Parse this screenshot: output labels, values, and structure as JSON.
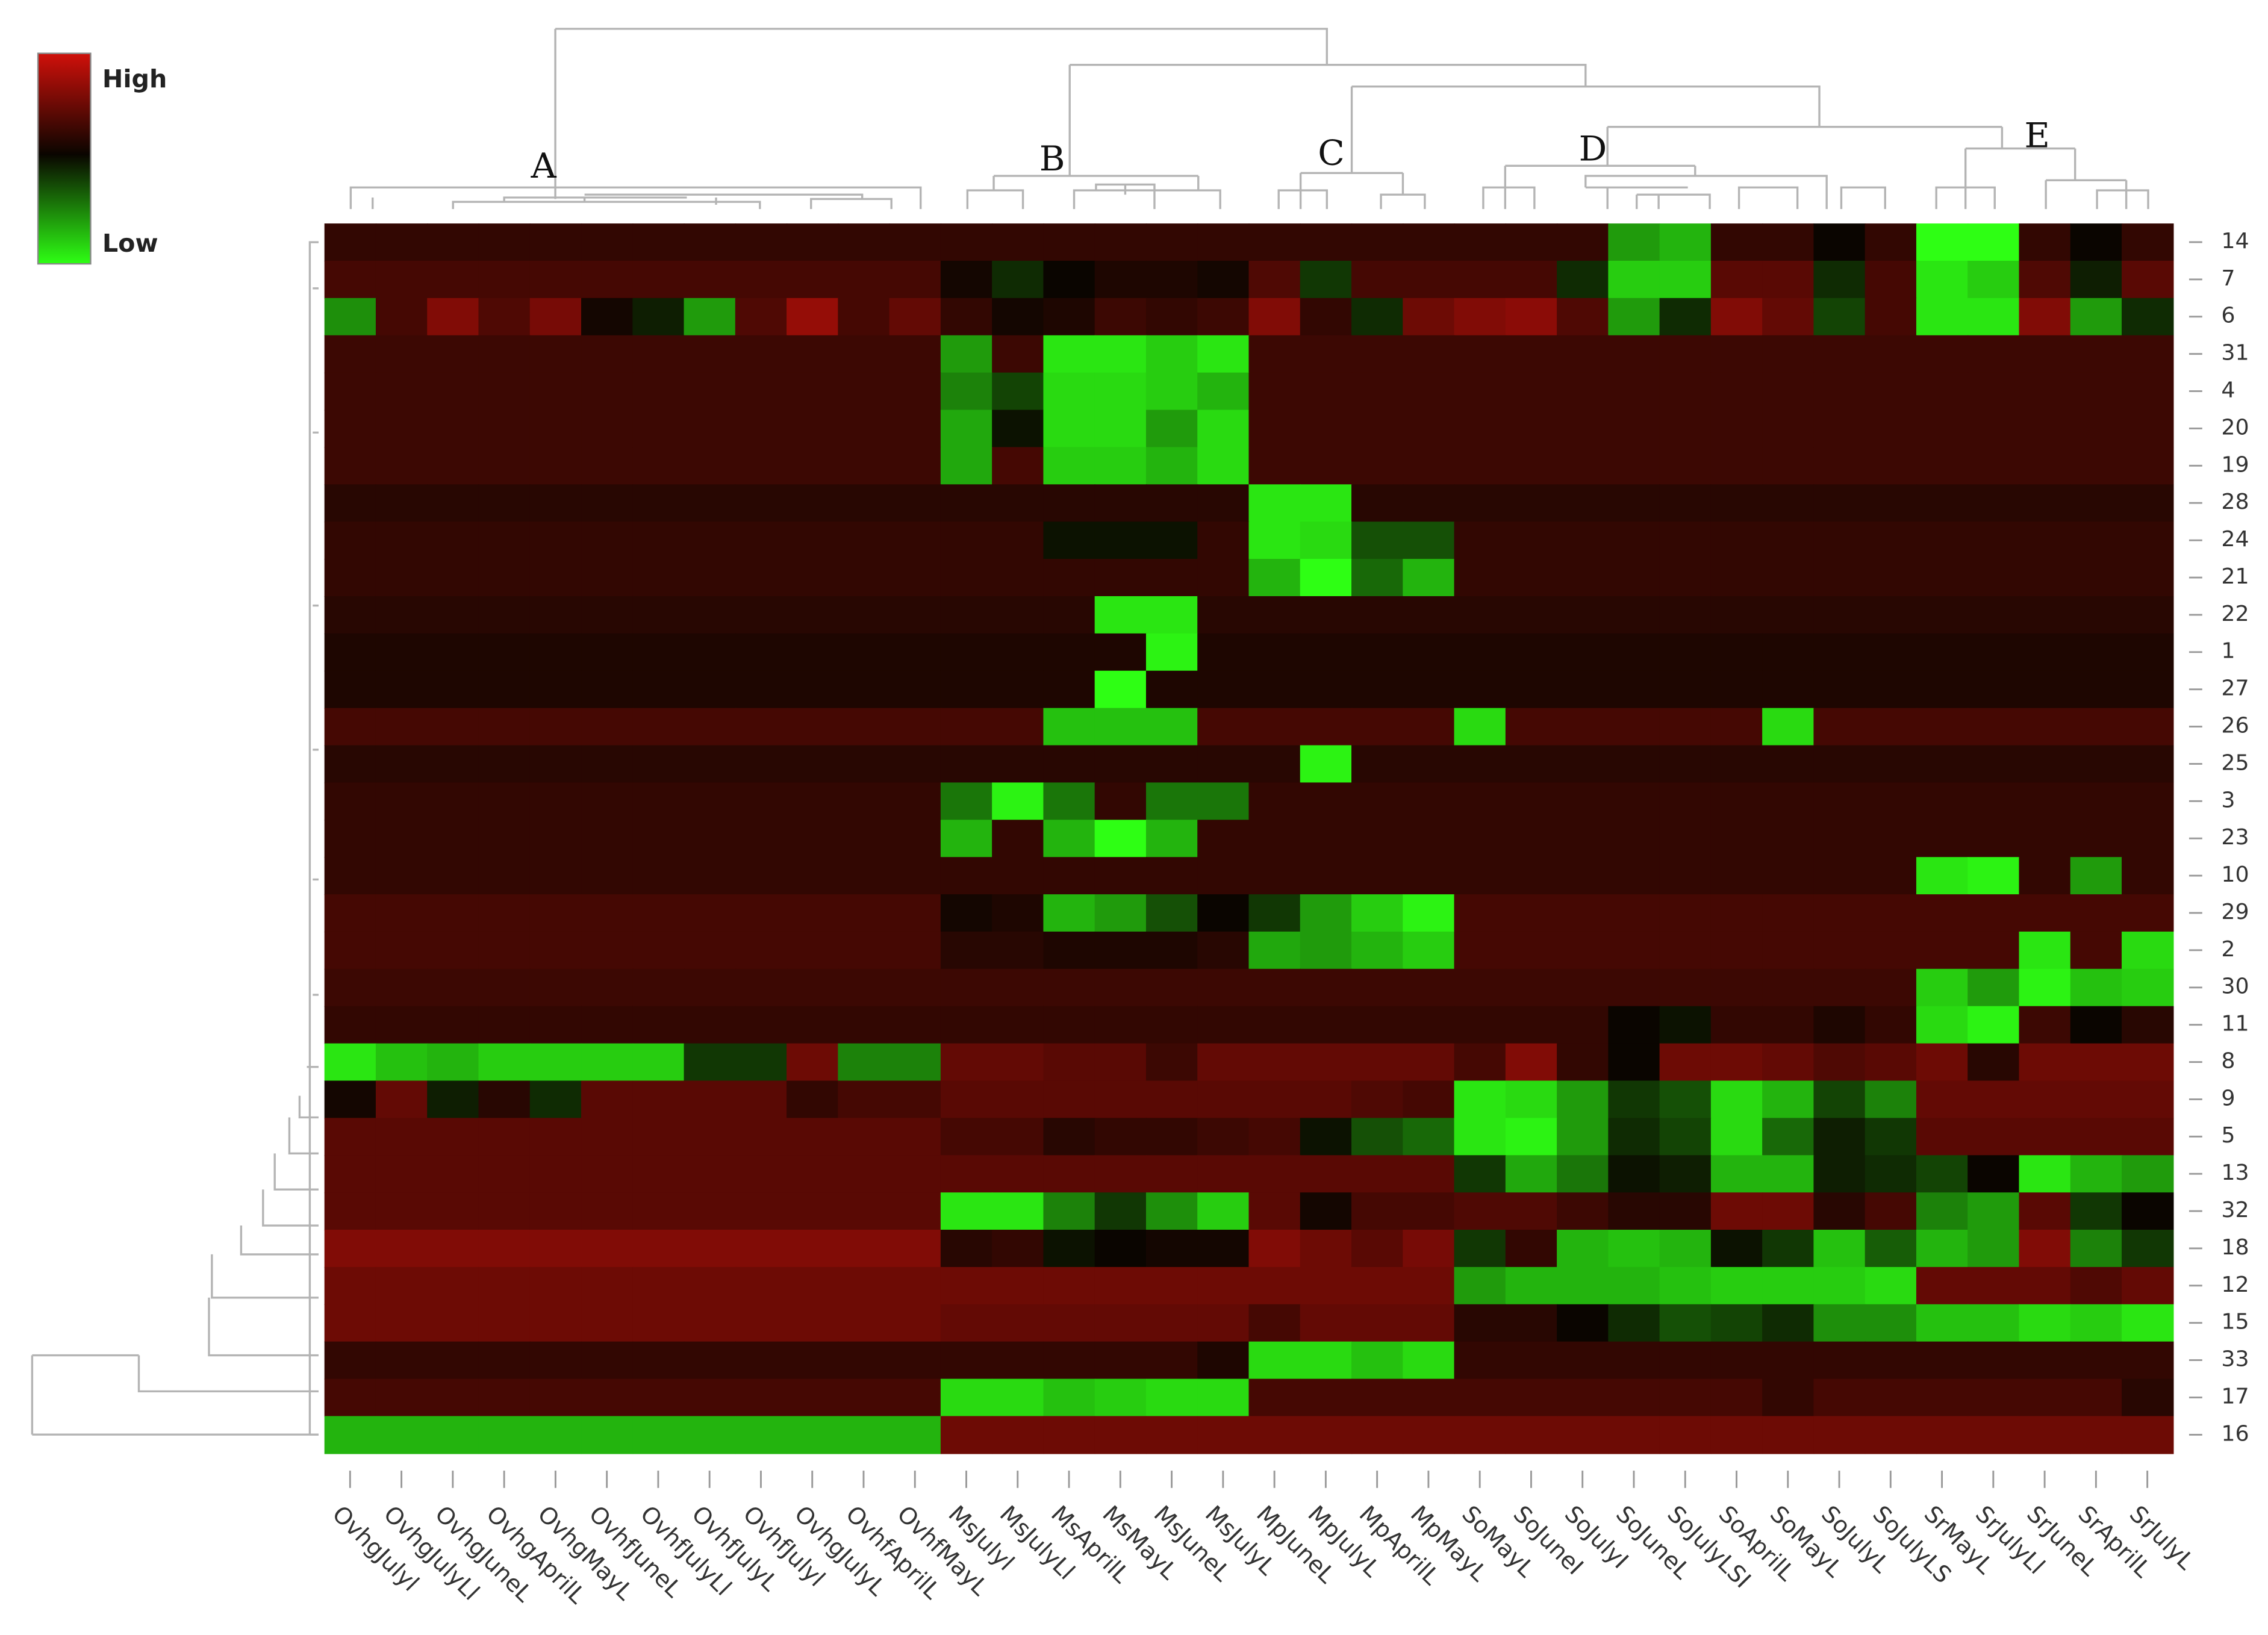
{
  "chart_data": {
    "type": "heatmap",
    "x": [
      "OvhgJulyl",
      "OvhgJulyLl",
      "OvhgJuneL",
      "OvhgAprilL",
      "OvhgMayL",
      "OvhfJuneL",
      "OvhfJulyLl",
      "OvhfJulyL",
      "OvhfJulyl",
      "OvhgJulyL",
      "OvhfAprilL",
      "OvhfMayL",
      "MsJulyl",
      "MsJulyLl",
      "MsAprilL",
      "MsMayL",
      "MsJuneL",
      "MsJulyL",
      "MpJuneL",
      "MpJulyL",
      "MpAprilL",
      "MpMayL",
      "SoMayL",
      "SoJuneI",
      "SoJulyI",
      "SoJuneL",
      "SoJulyLSI",
      "SoAprilL",
      "SoMayL",
      "SoJulyL",
      "SoJulyLS",
      "SrMayL",
      "SrJulyLl",
      "SrJuneL",
      "SrAprilL",
      "SrJulyL"
    ],
    "y": [
      "14",
      "7",
      "6",
      "31",
      "4",
      "20",
      "19",
      "28",
      "24",
      "21",
      "22",
      "1",
      "27",
      "26",
      "25",
      "3",
      "23",
      "10",
      "29",
      "2",
      "30",
      "11",
      "8",
      "9",
      "5",
      "13",
      "32",
      "18",
      "12",
      "15",
      "33",
      "17",
      "16"
    ],
    "cluster_labels": [
      "A",
      "B",
      "C",
      "D",
      "E"
    ],
    "colorbar_labels": [
      "High",
      "Low"
    ],
    "zlim": [
      -1,
      1
    ],
    "colors": {
      "low": "#2eff14",
      "mid": "#0a0500",
      "high": "#d0100a"
    },
    "values": [
      [
        0.2,
        0.2,
        0.2,
        0.2,
        0.2,
        0.2,
        0.2,
        0.2,
        0.2,
        0.2,
        0.2,
        0.2,
        0.2,
        0.2,
        0.2,
        0.2,
        0.2,
        0.2,
        0.2,
        0.2,
        0.2,
        0.2,
        0.2,
        0.2,
        0.2,
        -0.6,
        -0.7,
        0.2,
        0.2,
        0,
        0.2,
        -1,
        -1,
        0.2,
        0,
        0.2
      ],
      [
        0.3,
        0.3,
        0.3,
        0.3,
        0.3,
        0.3,
        0.3,
        0.3,
        0.3,
        0.3,
        0.3,
        0.3,
        0.05,
        -0.15,
        0,
        0.1,
        0.1,
        0.05,
        0.35,
        -0.2,
        0.3,
        0.3,
        0.3,
        0.3,
        -0.15,
        -0.8,
        -0.8,
        0.4,
        0.4,
        -0.15,
        0.3,
        -0.9,
        -0.8,
        0.35,
        -0.1,
        0.4
      ],
      [
        -0.55,
        0.3,
        0.6,
        0.35,
        0.55,
        0.05,
        -0.1,
        -0.6,
        0.35,
        0.7,
        0.3,
        0.45,
        0.2,
        0.05,
        0.1,
        0.25,
        0.2,
        0.25,
        0.6,
        0.2,
        -0.15,
        0.5,
        0.6,
        0.65,
        0.35,
        -0.6,
        -0.15,
        0.6,
        0.45,
        -0.25,
        0.3,
        -0.9,
        -0.9,
        0.6,
        -0.6,
        -0.15
      ],
      [
        0.25,
        0.25,
        0.25,
        0.25,
        0.25,
        0.25,
        0.25,
        0.25,
        0.25,
        0.25,
        0.25,
        0.25,
        -0.6,
        0.25,
        -0.9,
        -0.9,
        -0.8,
        -0.9,
        0.25,
        0.25,
        0.25,
        0.25,
        0.25,
        0.25,
        0.25,
        0.25,
        0.25,
        0.25,
        0.25,
        0.25,
        0.25,
        0.25,
        0.25,
        0.25,
        0.25,
        0.25
      ],
      [
        0.25,
        0.25,
        0.25,
        0.25,
        0.25,
        0.25,
        0.25,
        0.25,
        0.25,
        0.25,
        0.25,
        0.25,
        -0.5,
        -0.25,
        -0.85,
        -0.85,
        -0.8,
        -0.7,
        0.25,
        0.25,
        0.25,
        0.25,
        0.25,
        0.25,
        0.25,
        0.25,
        0.25,
        0.25,
        0.25,
        0.25,
        0.25,
        0.25,
        0.25,
        0.25,
        0.25,
        0.25
      ],
      [
        0.25,
        0.25,
        0.25,
        0.25,
        0.25,
        0.25,
        0.25,
        0.25,
        0.25,
        0.25,
        0.25,
        0.25,
        -0.65,
        -0.05,
        -0.85,
        -0.85,
        -0.6,
        -0.85,
        0.25,
        0.25,
        0.25,
        0.25,
        0.25,
        0.25,
        0.25,
        0.25,
        0.25,
        0.25,
        0.25,
        0.25,
        0.25,
        0.25,
        0.25,
        0.25,
        0.25,
        0.25
      ],
      [
        0.25,
        0.25,
        0.25,
        0.25,
        0.25,
        0.25,
        0.25,
        0.25,
        0.25,
        0.25,
        0.25,
        0.25,
        -0.65,
        0.3,
        -0.8,
        -0.8,
        -0.7,
        -0.85,
        0.25,
        0.25,
        0.25,
        0.25,
        0.25,
        0.25,
        0.25,
        0.25,
        0.25,
        0.25,
        0.25,
        0.25,
        0.25,
        0.25,
        0.25,
        0.25,
        0.25,
        0.25
      ],
      [
        0.15,
        0.15,
        0.15,
        0.15,
        0.15,
        0.15,
        0.15,
        0.15,
        0.15,
        0.15,
        0.15,
        0.15,
        0.15,
        0.15,
        0.15,
        0.15,
        0.15,
        0.15,
        -0.9,
        -0.9,
        0.15,
        0.15,
        0.15,
        0.15,
        0.15,
        0.15,
        0.15,
        0.15,
        0.15,
        0.15,
        0.15,
        0.15,
        0.15,
        0.15,
        0.15,
        0.15
      ],
      [
        0.2,
        0.2,
        0.2,
        0.2,
        0.2,
        0.2,
        0.2,
        0.2,
        0.2,
        0.2,
        0.2,
        0.2,
        0.2,
        0.2,
        -0.05,
        -0.05,
        -0.05,
        0.2,
        -0.9,
        -0.85,
        -0.3,
        -0.3,
        0.2,
        0.2,
        0.2,
        0.2,
        0.2,
        0.2,
        0.2,
        0.2,
        0.2,
        0.2,
        0.2,
        0.2,
        0.2,
        0.2
      ],
      [
        0.2,
        0.2,
        0.2,
        0.2,
        0.2,
        0.2,
        0.2,
        0.2,
        0.2,
        0.2,
        0.2,
        0.2,
        0.2,
        0.2,
        0.2,
        0.2,
        0.2,
        0.2,
        -0.7,
        -1,
        -0.4,
        -0.7,
        0.2,
        0.2,
        0.2,
        0.2,
        0.2,
        0.2,
        0.2,
        0.2,
        0.2,
        0.2,
        0.2,
        0.2,
        0.2,
        0.2
      ],
      [
        0.15,
        0.15,
        0.15,
        0.15,
        0.15,
        0.15,
        0.15,
        0.15,
        0.15,
        0.15,
        0.15,
        0.15,
        0.15,
        0.15,
        0.15,
        -0.9,
        -0.9,
        0.15,
        0.15,
        0.15,
        0.15,
        0.15,
        0.15,
        0.15,
        0.15,
        0.15,
        0.15,
        0.15,
        0.15,
        0.15,
        0.15,
        0.15,
        0.15,
        0.15,
        0.15,
        0.15
      ],
      [
        0.1,
        0.1,
        0.1,
        0.1,
        0.1,
        0.1,
        0.1,
        0.1,
        0.1,
        0.1,
        0.1,
        0.1,
        0.1,
        0.1,
        0.1,
        0.1,
        -0.95,
        0.1,
        0.1,
        0.1,
        0.1,
        0.1,
        0.1,
        0.1,
        0.1,
        0.1,
        0.1,
        0.1,
        0.1,
        0.1,
        0.1,
        0.1,
        0.1,
        0.1,
        0.1,
        0.1
      ],
      [
        0.1,
        0.1,
        0.1,
        0.1,
        0.1,
        0.1,
        0.1,
        0.1,
        0.1,
        0.1,
        0.1,
        0.1,
        0.1,
        0.1,
        0.1,
        -1,
        0.1,
        0.1,
        0.1,
        0.1,
        0.1,
        0.1,
        0.1,
        0.1,
        0.1,
        0.1,
        0.1,
        0.1,
        0.1,
        0.1,
        0.1,
        0.1,
        0.1,
        0.1,
        0.1,
        0.1
      ],
      [
        0.3,
        0.3,
        0.3,
        0.3,
        0.3,
        0.3,
        0.3,
        0.3,
        0.3,
        0.3,
        0.3,
        0.3,
        0.3,
        0.3,
        -0.75,
        -0.75,
        -0.75,
        0.3,
        0.3,
        0.3,
        0.3,
        0.3,
        -0.85,
        0.3,
        0.3,
        0.3,
        0.3,
        0.3,
        -0.85,
        0.3,
        0.3,
        0.3,
        0.3,
        0.3,
        0.3,
        0.3
      ],
      [
        0.15,
        0.15,
        0.15,
        0.15,
        0.15,
        0.15,
        0.15,
        0.15,
        0.15,
        0.15,
        0.15,
        0.15,
        0.15,
        0.15,
        0.15,
        0.15,
        0.15,
        0.15,
        0.15,
        -0.95,
        0.15,
        0.15,
        0.15,
        0.15,
        0.15,
        0.15,
        0.15,
        0.15,
        0.15,
        0.15,
        0.15,
        0.15,
        0.15,
        0.15,
        0.15,
        0.15
      ],
      [
        0.2,
        0.2,
        0.2,
        0.2,
        0.2,
        0.2,
        0.2,
        0.2,
        0.2,
        0.2,
        0.2,
        0.2,
        -0.45,
        -0.95,
        -0.45,
        0.2,
        -0.45,
        -0.45,
        0.2,
        0.2,
        0.2,
        0.2,
        0.2,
        0.2,
        0.2,
        0.2,
        0.2,
        0.2,
        0.2,
        0.2,
        0.2,
        0.2,
        0.2,
        0.2,
        0.2,
        0.2
      ],
      [
        0.2,
        0.2,
        0.2,
        0.2,
        0.2,
        0.2,
        0.2,
        0.2,
        0.2,
        0.2,
        0.2,
        0.2,
        -0.7,
        0.2,
        -0.7,
        -1,
        -0.7,
        0.2,
        0.2,
        0.2,
        0.2,
        0.2,
        0.2,
        0.2,
        0.2,
        0.2,
        0.2,
        0.2,
        0.2,
        0.2,
        0.2,
        0.2,
        0.2,
        0.2,
        0.2,
        0.2
      ],
      [
        0.2,
        0.2,
        0.2,
        0.2,
        0.2,
        0.2,
        0.2,
        0.2,
        0.2,
        0.2,
        0.2,
        0.2,
        0.2,
        0.2,
        0.2,
        0.2,
        0.2,
        0.2,
        0.2,
        0.2,
        0.2,
        0.2,
        0.2,
        0.2,
        0.2,
        0.2,
        0.2,
        0.2,
        0.2,
        0.2,
        0.2,
        -0.9,
        -0.95,
        0.2,
        -0.6,
        0.2
      ],
      [
        0.3,
        0.3,
        0.3,
        0.3,
        0.3,
        0.3,
        0.3,
        0.3,
        0.3,
        0.3,
        0.3,
        0.3,
        0.05,
        0.1,
        -0.7,
        -0.6,
        -0.3,
        0,
        -0.2,
        -0.6,
        -0.8,
        -0.95,
        0.3,
        0.3,
        0.3,
        0.3,
        0.3,
        0.3,
        0.3,
        0.3,
        0.3,
        0.3,
        0.3,
        0.3,
        0.3,
        0.3
      ],
      [
        0.3,
        0.3,
        0.3,
        0.3,
        0.3,
        0.3,
        0.3,
        0.3,
        0.3,
        0.3,
        0.3,
        0.3,
        0.15,
        0.15,
        0.1,
        0.1,
        0.1,
        0.15,
        -0.65,
        -0.6,
        -0.7,
        -0.8,
        0.3,
        0.3,
        0.3,
        0.3,
        0.3,
        0.3,
        0.3,
        0.3,
        0.3,
        0.3,
        0.3,
        -0.9,
        0.3,
        -0.85
      ],
      [
        0.25,
        0.25,
        0.25,
        0.25,
        0.25,
        0.25,
        0.25,
        0.25,
        0.25,
        0.25,
        0.25,
        0.25,
        0.25,
        0.25,
        0.25,
        0.25,
        0.25,
        0.25,
        0.25,
        0.25,
        0.25,
        0.25,
        0.25,
        0.25,
        0.25,
        0.25,
        0.25,
        0.25,
        0.25,
        0.25,
        0.25,
        -0.8,
        -0.6,
        -0.95,
        -0.75,
        -0.8
      ],
      [
        0.2,
        0.2,
        0.2,
        0.2,
        0.2,
        0.2,
        0.2,
        0.2,
        0.2,
        0.2,
        0.2,
        0.2,
        0.2,
        0.2,
        0.2,
        0.2,
        0.2,
        0.2,
        0.2,
        0.2,
        0.2,
        0.2,
        0.2,
        0.2,
        0.2,
        0,
        -0.05,
        0.2,
        0.2,
        0.1,
        0.2,
        -0.85,
        -0.95,
        0.25,
        0,
        0.15
      ],
      [
        -0.9,
        -0.75,
        -0.7,
        -0.8,
        -0.8,
        -0.8,
        -0.8,
        -0.2,
        -0.2,
        0.5,
        -0.5,
        -0.5,
        0.45,
        0.45,
        0.4,
        0.4,
        0.25,
        0.45,
        0.45,
        0.45,
        0.45,
        0.45,
        0.3,
        0.6,
        0.2,
        0,
        0.5,
        0.5,
        0.45,
        0.35,
        0.4,
        0.5,
        0.15,
        0.5,
        0.5,
        0.5
      ],
      [
        0.05,
        0.45,
        -0.1,
        0.15,
        -0.15,
        0.4,
        0.4,
        0.4,
        0.4,
        0.2,
        0.3,
        0.3,
        0.4,
        0.4,
        0.4,
        0.4,
        0.4,
        0.4,
        0.4,
        0.4,
        0.35,
        0.3,
        -0.9,
        -0.85,
        -0.6,
        -0.2,
        -0.3,
        -0.85,
        -0.7,
        -0.25,
        -0.5,
        0.45,
        0.45,
        0.45,
        0.45,
        0.45
      ],
      [
        0.4,
        0.4,
        0.4,
        0.4,
        0.4,
        0.4,
        0.4,
        0.4,
        0.4,
        0.4,
        0.4,
        0.4,
        0.3,
        0.3,
        0.15,
        0.2,
        0.2,
        0.25,
        0.3,
        -0.05,
        -0.3,
        -0.4,
        -0.9,
        -0.95,
        -0.6,
        -0.15,
        -0.25,
        -0.85,
        -0.4,
        -0.1,
        -0.2,
        0.4,
        0.4,
        0.4,
        0.4,
        0.4
      ],
      [
        0.4,
        0.4,
        0.4,
        0.4,
        0.4,
        0.4,
        0.4,
        0.4,
        0.4,
        0.4,
        0.4,
        0.4,
        0.4,
        0.4,
        0.4,
        0.4,
        0.4,
        0.4,
        0.4,
        0.4,
        0.4,
        0.4,
        -0.2,
        -0.65,
        -0.45,
        -0.05,
        -0.1,
        -0.7,
        -0.7,
        -0.1,
        -0.15,
        -0.25,
        0,
        -0.9,
        -0.7,
        -0.6
      ],
      [
        0.4,
        0.4,
        0.4,
        0.4,
        0.4,
        0.4,
        0.4,
        0.4,
        0.4,
        0.4,
        0.4,
        0.4,
        -0.9,
        -0.9,
        -0.5,
        -0.2,
        -0.55,
        -0.8,
        0.4,
        0.05,
        0.3,
        0.3,
        0.35,
        0.35,
        0.25,
        0.15,
        0.15,
        0.5,
        0.5,
        0.15,
        0.3,
        -0.5,
        -0.6,
        0.4,
        -0.2,
        0
      ],
      [
        0.6,
        0.6,
        0.6,
        0.6,
        0.6,
        0.6,
        0.6,
        0.6,
        0.6,
        0.6,
        0.6,
        0.6,
        0.15,
        0.2,
        -0.05,
        0,
        0.05,
        0.05,
        0.6,
        0.5,
        0.4,
        0.55,
        -0.2,
        0.2,
        -0.7,
        -0.75,
        -0.7,
        -0.05,
        -0.2,
        -0.75,
        -0.35,
        -0.7,
        -0.6,
        0.6,
        -0.5,
        -0.2
      ],
      [
        0.5,
        0.5,
        0.5,
        0.5,
        0.5,
        0.5,
        0.5,
        0.5,
        0.5,
        0.5,
        0.5,
        0.5,
        0.5,
        0.5,
        0.5,
        0.5,
        0.5,
        0.5,
        0.5,
        0.5,
        0.5,
        0.5,
        -0.6,
        -0.7,
        -0.7,
        -0.7,
        -0.75,
        -0.8,
        -0.8,
        -0.8,
        -0.85,
        0.45,
        0.45,
        0.45,
        0.35,
        0.45
      ],
      [
        0.5,
        0.5,
        0.5,
        0.5,
        0.5,
        0.5,
        0.5,
        0.5,
        0.5,
        0.5,
        0.5,
        0.5,
        0.45,
        0.45,
        0.45,
        0.45,
        0.45,
        0.45,
        0.3,
        0.45,
        0.45,
        0.45,
        0.15,
        0.15,
        0,
        -0.15,
        -0.3,
        -0.25,
        -0.15,
        -0.55,
        -0.55,
        -0.75,
        -0.75,
        -0.85,
        -0.8,
        -0.9
      ],
      [
        0.2,
        0.2,
        0.2,
        0.2,
        0.2,
        0.2,
        0.2,
        0.2,
        0.2,
        0.2,
        0.2,
        0.2,
        0.2,
        0.2,
        0.2,
        0.2,
        0.2,
        0.1,
        -0.85,
        -0.85,
        -0.75,
        -0.85,
        0.2,
        0.2,
        0.2,
        0.2,
        0.2,
        0.2,
        0.2,
        0.2,
        0.2,
        0.2,
        0.2,
        0.2,
        0.2,
        0.2
      ],
      [
        0.3,
        0.3,
        0.3,
        0.3,
        0.3,
        0.3,
        0.3,
        0.3,
        0.3,
        0.3,
        0.3,
        0.3,
        -0.85,
        -0.85,
        -0.75,
        -0.8,
        -0.85,
        -0.85,
        0.3,
        0.3,
        0.3,
        0.3,
        0.3,
        0.3,
        0.3,
        0.3,
        0.3,
        0.3,
        0.2,
        0.3,
        0.3,
        0.3,
        0.3,
        0.3,
        0.3,
        0.15
      ],
      [
        -0.7,
        -0.7,
        -0.7,
        -0.7,
        -0.7,
        -0.7,
        -0.7,
        -0.7,
        -0.7,
        -0.7,
        -0.7,
        -0.7,
        0.5,
        0.5,
        0.5,
        0.5,
        0.5,
        0.5,
        0.5,
        0.5,
        0.5,
        0.5,
        0.5,
        0.5,
        0.5,
        0.5,
        0.5,
        0.5,
        0.5,
        0.5,
        0.5,
        0.5,
        0.5,
        0.5,
        0.5,
        0.5
      ]
    ]
  }
}
